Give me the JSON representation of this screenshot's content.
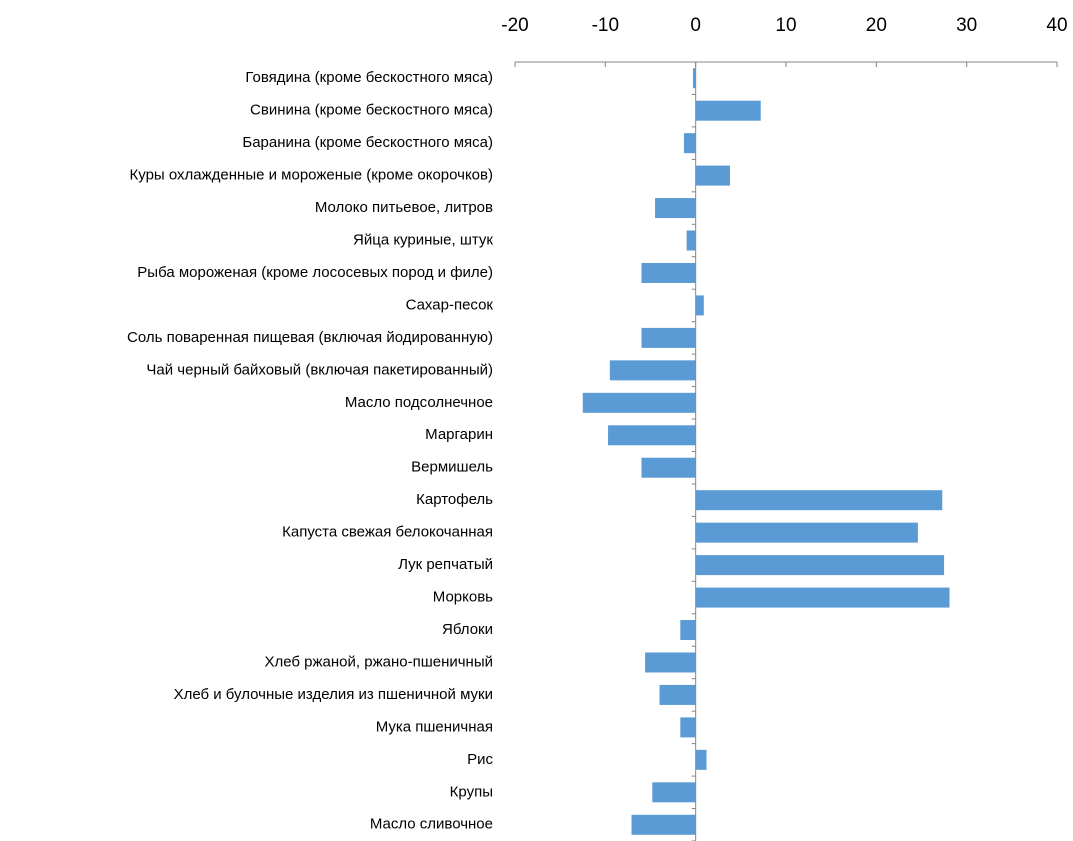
{
  "chart_data": {
    "type": "bar",
    "orientation": "horizontal",
    "categories": [
      "Говядина (кроме бескостного мяса)",
      "Свинина (кроме бескостного мяса)",
      "Баранина (кроме бескостного мяса)",
      "Куры охлажденные и мороженые (кроме окорочков)",
      "Молоко питьевое, литров",
      "Яйца куриные, штук",
      "Рыба мороженая (кроме лососевых пород и филе)",
      "Сахар-песок",
      "Соль поваренная  пищевая (включая йодированную)",
      "Чай черный байховый (включая пакетированный)",
      "Масло подсолнечное",
      "Маргарин",
      "Вермишель",
      "Картофель",
      "Капуста свежая белокочанная",
      "Лук репчатый",
      "Морковь",
      "Яблоки",
      "Хлеб ржаной, ржано-пшеничный",
      "Хлеб и булочные изделия из пшеничной муки ",
      "Мука пшеничная",
      "Рис",
      "Крупы",
      "Масло сливочное"
    ],
    "values": [
      -0.3,
      7.2,
      -1.3,
      3.8,
      -4.5,
      -1.0,
      -6.0,
      0.9,
      -6.0,
      -9.5,
      -12.5,
      -9.7,
      -6.0,
      27.3,
      24.6,
      27.5,
      28.1,
      -1.7,
      -5.6,
      -4.0,
      -1.7,
      1.2,
      -4.8,
      -7.1
    ],
    "color": "#5b9bd5",
    "xlim": [
      -20,
      40
    ],
    "xticks": [
      -20,
      -10,
      0,
      10,
      20,
      30,
      40
    ],
    "grid": false
  }
}
